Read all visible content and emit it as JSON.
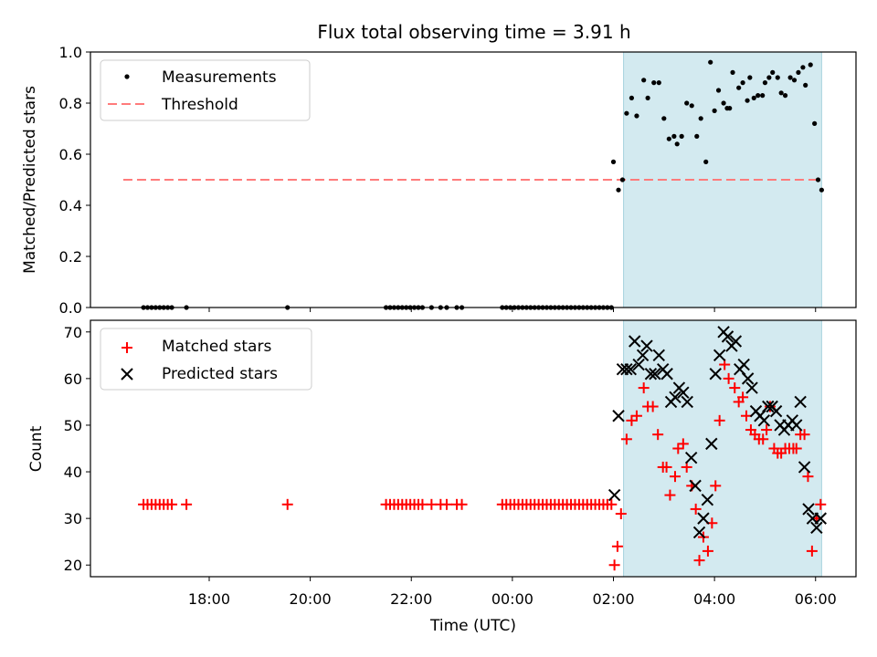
{
  "chart_data": [
    {
      "type": "scatter",
      "title": "Flux total observing time = 3.91 h",
      "ylabel": "Matched/Predicted stars",
      "xlabel": "",
      "xlim_hours": [
        15.65,
        30.8
      ],
      "ylim": [
        0.0,
        1.0
      ],
      "yticks": [
        0.0,
        0.2,
        0.4,
        0.6,
        0.8,
        1.0
      ],
      "ytick_labels": [
        "0.0",
        "0.2",
        "0.4",
        "0.6",
        "0.8",
        "1.0"
      ],
      "shaded_span_hours": [
        26.2,
        30.12
      ],
      "legend": [
        "Measurements",
        "Threshold"
      ],
      "legend_position": "top-left",
      "colors": {
        "measurements": "#000000",
        "threshold": "#ff7b7b",
        "span": "#d3eaf0"
      },
      "threshold": {
        "value": 0.5,
        "x_from": 16.3,
        "x_to": 30.1
      },
      "measurements": {
        "x": [
          16.7,
          16.78,
          16.86,
          16.94,
          17.02,
          17.1,
          17.18,
          17.26,
          17.55,
          19.55,
          21.5,
          21.58,
          21.66,
          21.74,
          21.82,
          21.9,
          21.98,
          22.06,
          22.14,
          22.22,
          22.4,
          22.58,
          22.7,
          22.9,
          23.0,
          23.8,
          23.88,
          23.96,
          24.04,
          24.12,
          24.2,
          24.28,
          24.36,
          24.44,
          24.52,
          24.6,
          24.68,
          24.76,
          24.84,
          24.92,
          25.0,
          25.08,
          25.16,
          25.24,
          25.32,
          25.4,
          25.48,
          25.56,
          25.64,
          25.72,
          25.8,
          25.88,
          25.96,
          26.0,
          26.1,
          26.18,
          26.26,
          26.36,
          26.46,
          26.6,
          26.68,
          26.8,
          26.9,
          27.0,
          27.1,
          27.2,
          27.26,
          27.35,
          27.45,
          27.55,
          27.65,
          27.73,
          27.83,
          27.92,
          28.0,
          28.08,
          28.18,
          28.25,
          28.3,
          28.36,
          28.48,
          28.56,
          28.65,
          28.7,
          28.78,
          28.86,
          28.95,
          29.0,
          29.08,
          29.15,
          29.25,
          29.32,
          29.4,
          29.5,
          29.58,
          29.66,
          29.75,
          29.8,
          29.9,
          29.98,
          30.05,
          30.12
        ],
        "y": [
          0,
          0,
          0,
          0,
          0,
          0,
          0,
          0,
          0,
          0,
          0,
          0,
          0,
          0,
          0,
          0,
          0,
          0,
          0,
          0,
          0,
          0,
          0,
          0,
          0,
          0,
          0,
          0,
          0,
          0,
          0,
          0,
          0,
          0,
          0,
          0,
          0,
          0,
          0,
          0,
          0,
          0,
          0,
          0,
          0,
          0,
          0,
          0,
          0,
          0,
          0,
          0,
          0,
          0.57,
          0.46,
          0.5,
          0.76,
          0.82,
          0.75,
          0.89,
          0.82,
          0.88,
          0.88,
          0.74,
          0.66,
          0.67,
          0.64,
          0.67,
          0.8,
          0.79,
          0.67,
          0.74,
          0.57,
          0.96,
          0.77,
          0.85,
          0.8,
          0.78,
          0.78,
          0.92,
          0.86,
          0.88,
          0.81,
          0.9,
          0.82,
          0.83,
          0.83,
          0.88,
          0.9,
          0.92,
          0.9,
          0.84,
          0.83,
          0.9,
          0.89,
          0.92,
          0.94,
          0.87,
          0.95,
          0.72,
          0.5,
          0.46
        ]
      }
    },
    {
      "type": "scatter",
      "title": "",
      "ylabel": "Count",
      "xlabel": "Time (UTC)",
      "xlim_hours": [
        15.65,
        30.8
      ],
      "ylim": [
        17.5,
        72.5
      ],
      "yticks": [
        20,
        30,
        40,
        50,
        60,
        70
      ],
      "ytick_labels": [
        "20",
        "30",
        "40",
        "50",
        "60",
        "70"
      ],
      "xticks_hours": [
        18,
        20,
        22,
        24,
        26,
        28,
        30
      ],
      "xtick_labels": [
        "18:00",
        "20:00",
        "22:00",
        "00:00",
        "02:00",
        "04:00",
        "06:00"
      ],
      "shaded_span_hours": [
        26.2,
        30.12
      ],
      "legend": [
        "Matched stars",
        "Predicted stars"
      ],
      "legend_position": "top-left",
      "colors": {
        "matched": "#ff0000",
        "predicted": "#000000",
        "span": "#d3eaf0"
      },
      "matched": {
        "x": [
          16.7,
          16.78,
          16.86,
          16.94,
          17.02,
          17.1,
          17.18,
          17.26,
          17.55,
          19.55,
          21.5,
          21.58,
          21.66,
          21.74,
          21.82,
          21.9,
          21.98,
          22.06,
          22.14,
          22.22,
          22.4,
          22.58,
          22.7,
          22.9,
          23.0,
          23.8,
          23.88,
          23.96,
          24.04,
          24.12,
          24.2,
          24.28,
          24.36,
          24.44,
          24.52,
          24.6,
          24.68,
          24.76,
          24.84,
          24.92,
          25.0,
          25.08,
          25.16,
          25.24,
          25.32,
          25.4,
          25.48,
          25.56,
          25.64,
          25.72,
          25.8,
          25.88,
          25.96,
          26.02,
          26.08,
          26.15,
          26.26,
          26.36,
          26.46,
          26.6,
          26.68,
          26.78,
          26.88,
          26.98,
          27.05,
          27.12,
          27.22,
          27.28,
          27.38,
          27.45,
          27.55,
          27.63,
          27.7,
          27.78,
          27.87,
          27.95,
          28.02,
          28.1,
          28.2,
          28.28,
          28.4,
          28.48,
          28.56,
          28.63,
          28.72,
          28.8,
          28.88,
          28.96,
          29.03,
          29.1,
          29.18,
          29.25,
          29.32,
          29.4,
          29.48,
          29.56,
          29.62,
          29.7,
          29.78,
          29.85,
          29.93,
          30.02,
          30.1
        ],
        "y": [
          33,
          33,
          33,
          33,
          33,
          33,
          33,
          33,
          33,
          33,
          33,
          33,
          33,
          33,
          33,
          33,
          33,
          33,
          33,
          33,
          33,
          33,
          33,
          33,
          33,
          33,
          33,
          33,
          33,
          33,
          33,
          33,
          33,
          33,
          33,
          33,
          33,
          33,
          33,
          33,
          33,
          33,
          33,
          33,
          33,
          33,
          33,
          33,
          33,
          33,
          33,
          33,
          33,
          20,
          24,
          31,
          47,
          51,
          52,
          58,
          54,
          54,
          48,
          41,
          41,
          35,
          39,
          45,
          46,
          41,
          37,
          32,
          21,
          26,
          23,
          29,
          37,
          51,
          63,
          60,
          58,
          55,
          56,
          52,
          49,
          48,
          47,
          47,
          49,
          54,
          45,
          44,
          44,
          45,
          45,
          45,
          45,
          48,
          48,
          39,
          23,
          30,
          33
        ]
      },
      "predicted": {
        "x": [
          26.02,
          26.1,
          26.18,
          26.26,
          26.34,
          26.42,
          26.5,
          26.58,
          26.66,
          26.74,
          26.82,
          26.9,
          26.98,
          27.06,
          27.14,
          27.22,
          27.3,
          27.38,
          27.46,
          27.54,
          27.62,
          27.7,
          27.78,
          27.86,
          27.94,
          28.02,
          28.1,
          28.18,
          28.26,
          28.34,
          28.42,
          28.5,
          28.58,
          28.66,
          28.74,
          28.82,
          28.9,
          28.98,
          29.06,
          29.14,
          29.22,
          29.3,
          29.38,
          29.46,
          29.54,
          29.62,
          29.7,
          29.78,
          29.86,
          29.94,
          30.02,
          30.1
        ],
        "y": [
          35,
          52,
          62,
          62,
          62,
          68,
          63,
          65,
          67,
          61,
          61,
          65,
          62,
          61,
          55,
          56,
          58,
          57,
          55,
          43,
          37,
          27,
          30,
          34,
          46,
          61,
          65,
          70,
          69,
          67,
          68,
          62,
          63,
          60,
          58,
          53,
          52,
          51,
          54,
          54,
          53,
          50,
          49,
          50,
          51,
          50,
          55,
          41,
          32,
          30,
          28,
          30
        ]
      }
    }
  ]
}
